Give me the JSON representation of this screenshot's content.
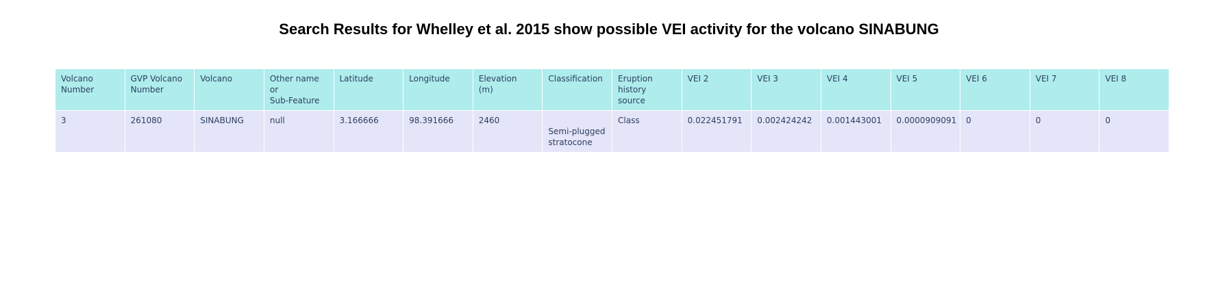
{
  "chart_data": {
    "type": "table",
    "title": "Search Results for Whelley et al. 2015 show possible VEI activity for the volcano SINABUNG",
    "columns": [
      "Volcano\nNumber",
      "GVP Volcano\nNumber",
      "Volcano",
      "Other name\nor\nSub-Feature",
      "Latitude",
      "Longitude",
      "Elevation\n(m)",
      "Classification",
      "Eruption\nhistory\nsource",
      "VEI 2",
      "VEI 3",
      "VEI 4",
      "VEI 5",
      "VEI 6",
      "VEI 7",
      "VEI 8"
    ],
    "rows": [
      [
        "3",
        "261080",
        "SINABUNG",
        "null",
        "3.166666",
        "98.391666",
        "2460",
        "\nSemi-plugged\nstratocone",
        "Class",
        "0.022451791",
        "0.002424242",
        "0.001443001",
        "0.0000909091",
        "0",
        "0",
        "0"
      ]
    ],
    "colors": {
      "header_fill": "#afecec",
      "cell_fill": "#e5e5f9",
      "text": "#2a3f5f"
    }
  }
}
